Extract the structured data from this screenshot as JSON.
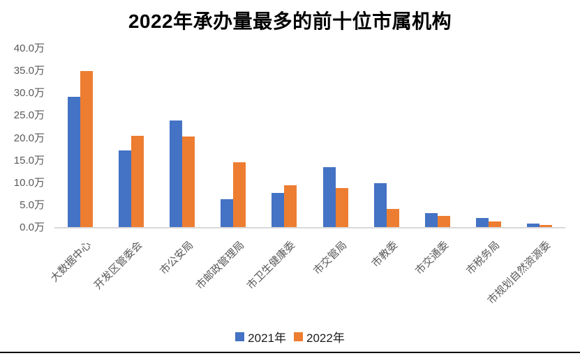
{
  "title": "2022年承办量最多的前十位市属机构",
  "chart_data": {
    "type": "bar",
    "title": "2022年承办量最多的前十位市属机构",
    "categories": [
      "大数据中心",
      "开发区管委会",
      "市公安局",
      "市邮政管理局",
      "市卫生健康委",
      "市交管局",
      "市教委",
      "市交通委",
      "市税务局",
      "市规划自然资源委"
    ],
    "series": [
      {
        "name": "2021年",
        "color": "#4472C4",
        "values": [
          29.3,
          17.3,
          24.0,
          6.4,
          7.8,
          13.5,
          10.0,
          3.2,
          2.2,
          0.9
        ]
      },
      {
        "name": "2022年",
        "color": "#ED7D31",
        "values": [
          35.0,
          20.6,
          20.4,
          14.7,
          9.5,
          8.8,
          4.2,
          2.6,
          1.4,
          0.6
        ]
      }
    ],
    "xlabel": "",
    "ylabel": "",
    "ylim": [
      0,
      40
    ],
    "ytick_step": 5,
    "ytick_labels": [
      "0.0万",
      "5.0万",
      "10.0万",
      "15.0万",
      "20.0万",
      "25.0万",
      "30.0万",
      "35.0万",
      "40.0万"
    ],
    "grid": false,
    "legend_position": "bottom"
  },
  "colors": {
    "series_2021": "#4472C4",
    "series_2022": "#ED7D31",
    "axis_line": "#d9d9d9",
    "axis_text": "#595959",
    "title_text": "#000000",
    "bottom_rule": "#000000"
  }
}
